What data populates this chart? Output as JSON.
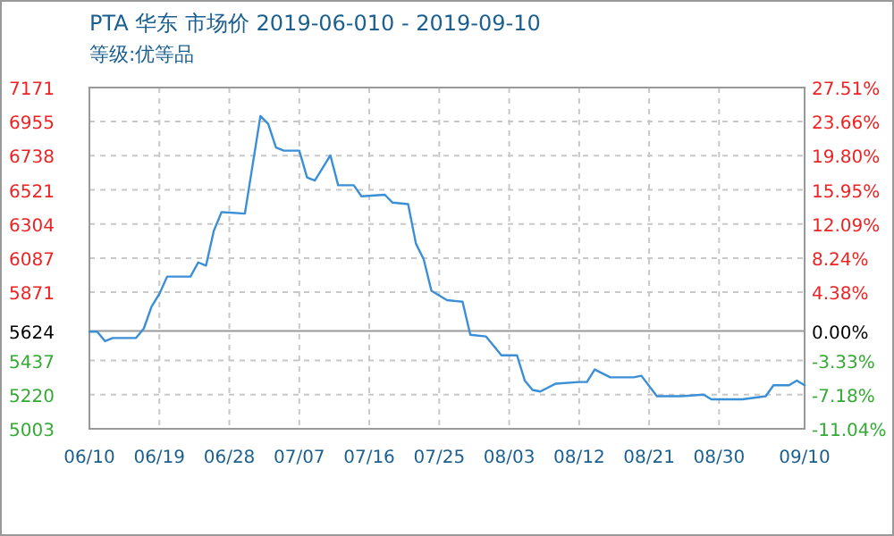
{
  "chart_data": {
    "type": "line",
    "title": "PTA 华东 市场价 2019-06-010 - 2019-09-10",
    "subtitle": "等级:优等品",
    "x": [
      "2019-06-10",
      "2019-06-11",
      "2019-06-12",
      "2019-06-13",
      "2019-06-16",
      "2019-06-17",
      "2019-06-18",
      "2019-06-19",
      "2019-06-20",
      "2019-06-23",
      "2019-06-24",
      "2019-06-25",
      "2019-06-26",
      "2019-06-27",
      "2019-06-30",
      "2019-07-02",
      "2019-07-03",
      "2019-07-04",
      "2019-07-05",
      "2019-07-07",
      "2019-07-08",
      "2019-07-09",
      "2019-07-11",
      "2019-07-12",
      "2019-07-14",
      "2019-07-15",
      "2019-07-18",
      "2019-07-19",
      "2019-07-21",
      "2019-07-22",
      "2019-07-23",
      "2019-07-24",
      "2019-07-26",
      "2019-07-28",
      "2019-07-29",
      "2019-07-31",
      "2019-08-02",
      "2019-08-04",
      "2019-08-05",
      "2019-08-06",
      "2019-08-07",
      "2019-08-09",
      "2019-08-12",
      "2019-08-13",
      "2019-08-14",
      "2019-08-16",
      "2019-08-19",
      "2019-08-20",
      "2019-08-22",
      "2019-08-25",
      "2019-08-28",
      "2019-08-29",
      "2019-09-02",
      "2019-09-05",
      "2019-09-06",
      "2019-09-08",
      "2019-09-09",
      "2019-09-10"
    ],
    "series": [
      {
        "color": "#3a8fd6",
        "values": [
          5620,
          5620,
          5560,
          5580,
          5580,
          5640,
          5780,
          5860,
          5970,
          5970,
          6060,
          6040,
          6260,
          6380,
          6370,
          6990,
          6940,
          6790,
          6770,
          6770,
          6600,
          6580,
          6740,
          6550,
          6550,
          6480,
          6490,
          6440,
          6430,
          6180,
          6080,
          5880,
          5820,
          5810,
          5600,
          5590,
          5470,
          5470,
          5310,
          5250,
          5240,
          5290,
          5300,
          5300,
          5380,
          5330,
          5330,
          5340,
          5210,
          5210,
          5220,
          5190,
          5190,
          5210,
          5280,
          5280,
          5310,
          5280
        ]
      }
    ],
    "xlim": [
      "2019-06-10",
      "2019-09-10"
    ],
    "xticks": [
      {
        "value": "2019-06-10",
        "label": "06/10"
      },
      {
        "value": "2019-06-19",
        "label": "06/19"
      },
      {
        "value": "2019-06-28",
        "label": "06/28"
      },
      {
        "value": "2019-07-07",
        "label": "07/07"
      },
      {
        "value": "2019-07-16",
        "label": "07/16"
      },
      {
        "value": "2019-07-25",
        "label": "07/25"
      },
      {
        "value": "2019-08-03",
        "label": "08/03"
      },
      {
        "value": "2019-08-12",
        "label": "08/12"
      },
      {
        "value": "2019-08-21",
        "label": "08/21"
      },
      {
        "value": "2019-08-30",
        "label": "08/30"
      },
      {
        "value": "2019-09-10",
        "label": "09/10"
      }
    ],
    "ylim": [
      5003,
      7171
    ],
    "yticks": [
      5003,
      5220,
      5437,
      5624,
      5871,
      6087,
      6304,
      6521,
      6738,
      6955,
      7171
    ],
    "y2lim": [
      -11.04,
      27.51
    ],
    "y2ticks": [
      {
        "value": -11.04,
        "label": "-11.04%"
      },
      {
        "value": -7.18,
        "label": "-7.18%"
      },
      {
        "value": -3.33,
        "label": "-3.33%"
      },
      {
        "value": 0,
        "label": "0.00%"
      },
      {
        "value": 4.38,
        "label": "4.38%"
      },
      {
        "value": 8.24,
        "label": "8.24%"
      },
      {
        "value": 12.09,
        "label": "12.09%"
      },
      {
        "value": 15.95,
        "label": "15.95%"
      },
      {
        "value": 19.8,
        "label": "19.80%"
      },
      {
        "value": 23.66,
        "label": "23.66%"
      },
      {
        "value": 27.51,
        "label": "27.51%"
      }
    ],
    "ref_lines": [
      {
        "axis": "y",
        "value": 5624,
        "color": "#999999",
        "line_style": "solid"
      }
    ],
    "grid": true
  }
}
